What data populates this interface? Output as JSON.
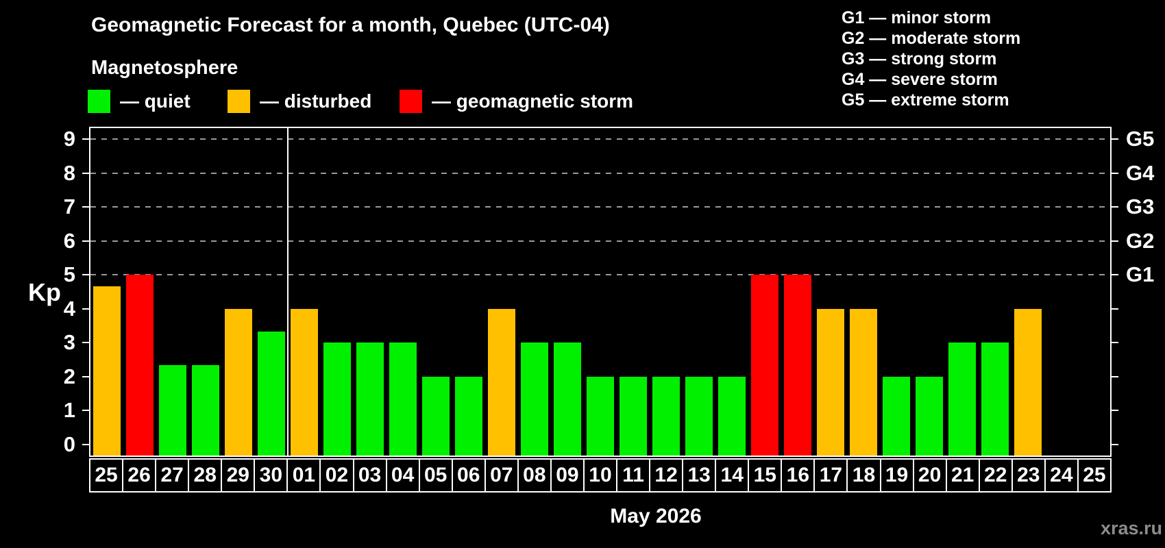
{
  "title": "Geomagnetic Forecast for a month, Quebec (UTC-04)",
  "subtitle": "Magnetosphere",
  "legend": {
    "items": [
      {
        "name": "quiet",
        "label": "— quiet",
        "color": "#00f000"
      },
      {
        "name": "disturbed",
        "label": "— disturbed",
        "color": "#ffc000"
      },
      {
        "name": "geomagnetic-storm",
        "label": "— geomagnetic storm",
        "color": "#ff0000"
      }
    ]
  },
  "g_scale_legend": [
    "G1 — minor storm",
    "G2 — moderate storm",
    "G3 — strong storm",
    "G4 — severe storm",
    "G5 — extreme storm"
  ],
  "watermark": "xras.ru",
  "chart_data": {
    "type": "bar",
    "title": "Geomagnetic Forecast for a month, Quebec (UTC-04)",
    "xlabel": "May 2026",
    "month_label": "May 2026",
    "ylabel": "Kp",
    "ylim": [
      -0.333,
      9.333
    ],
    "yticks": [
      0,
      1,
      2,
      3,
      4,
      5,
      6,
      7,
      8,
      9
    ],
    "gridlines_at": [
      5,
      6,
      7,
      8,
      9
    ],
    "grid": "dashed horizontal at G-storm levels only",
    "legend_position": "top-left",
    "right_axis_labels": [
      {
        "kp": 5,
        "label": "G1"
      },
      {
        "kp": 6,
        "label": "G2"
      },
      {
        "kp": 7,
        "label": "G3"
      },
      {
        "kp": 8,
        "label": "G4"
      },
      {
        "kp": 9,
        "label": "G5"
      }
    ],
    "month_separator_after_index": 6,
    "colors_by_state": {
      "quiet": "#00f000",
      "disturbed": "#ffc000",
      "storm": "#ff0000"
    },
    "bars": [
      {
        "date": "25",
        "kp": 4.67,
        "state": "disturbed"
      },
      {
        "date": "26",
        "kp": 5.0,
        "state": "storm"
      },
      {
        "date": "27",
        "kp": 2.33,
        "state": "quiet"
      },
      {
        "date": "28",
        "kp": 2.33,
        "state": "quiet"
      },
      {
        "date": "29",
        "kp": 4.0,
        "state": "disturbed"
      },
      {
        "date": "30",
        "kp": 3.33,
        "state": "quiet"
      },
      {
        "date": "01",
        "kp": 4.0,
        "state": "disturbed"
      },
      {
        "date": "02",
        "kp": 3.0,
        "state": "quiet"
      },
      {
        "date": "03",
        "kp": 3.0,
        "state": "quiet"
      },
      {
        "date": "04",
        "kp": 3.0,
        "state": "quiet"
      },
      {
        "date": "05",
        "kp": 2.0,
        "state": "quiet"
      },
      {
        "date": "06",
        "kp": 2.0,
        "state": "quiet"
      },
      {
        "date": "07",
        "kp": 4.0,
        "state": "disturbed"
      },
      {
        "date": "08",
        "kp": 3.0,
        "state": "quiet"
      },
      {
        "date": "09",
        "kp": 3.0,
        "state": "quiet"
      },
      {
        "date": "10",
        "kp": 2.0,
        "state": "quiet"
      },
      {
        "date": "11",
        "kp": 2.0,
        "state": "quiet"
      },
      {
        "date": "12",
        "kp": 2.0,
        "state": "quiet"
      },
      {
        "date": "13",
        "kp": 2.0,
        "state": "quiet"
      },
      {
        "date": "14",
        "kp": 2.0,
        "state": "quiet"
      },
      {
        "date": "15",
        "kp": 5.0,
        "state": "storm"
      },
      {
        "date": "16",
        "kp": 5.0,
        "state": "storm"
      },
      {
        "date": "17",
        "kp": 4.0,
        "state": "disturbed"
      },
      {
        "date": "18",
        "kp": 4.0,
        "state": "disturbed"
      },
      {
        "date": "19",
        "kp": 2.0,
        "state": "quiet"
      },
      {
        "date": "20",
        "kp": 2.0,
        "state": "quiet"
      },
      {
        "date": "21",
        "kp": 3.0,
        "state": "quiet"
      },
      {
        "date": "22",
        "kp": 3.0,
        "state": "quiet"
      },
      {
        "date": "23",
        "kp": 4.0,
        "state": "disturbed"
      },
      {
        "date": "24",
        "kp": null,
        "state": "none"
      },
      {
        "date": "25",
        "kp": null,
        "state": "none"
      }
    ]
  }
}
